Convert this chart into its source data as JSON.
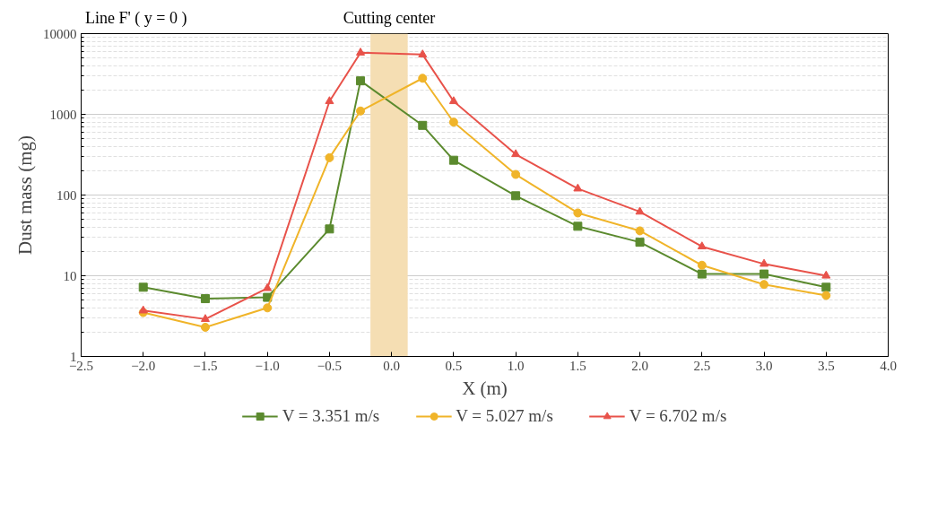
{
  "chart_data": {
    "type": "line",
    "xlabel": "X (m)",
    "ylabel": "Dust mass (mg)",
    "log": "y",
    "annotations": [
      "Line F' ( y = 0 )"
    ],
    "xlim": [
      -2.5,
      4.0
    ],
    "xticks": [
      {
        "value": -2.5,
        "label": "−2.5"
      },
      {
        "value": -2.0,
        "label": "−2.0"
      },
      {
        "value": -1.5,
        "label": "−1.5"
      },
      {
        "value": -1.0,
        "label": "−1.0"
      },
      {
        "value": -0.5,
        "label": "−0.5"
      },
      {
        "value": 0.0,
        "label": "0.0"
      },
      {
        "value": 0.5,
        "label": "0.5"
      },
      {
        "value": 1.0,
        "label": "1.0"
      },
      {
        "value": 1.5,
        "label": "1.5"
      },
      {
        "value": 2.0,
        "label": "2.0"
      },
      {
        "value": 2.5,
        "label": "2.5"
      },
      {
        "value": 3.0,
        "label": "3.0"
      },
      {
        "value": 3.5,
        "label": "3.5"
      },
      {
        "value": 4.0,
        "label": "4.0"
      }
    ],
    "ylim": [
      1,
      10000
    ],
    "yticks": [
      1,
      10,
      100,
      1000,
      10000
    ],
    "grid": "y",
    "legend": "bottom",
    "line_style": "solid",
    "bands": [
      {
        "axis": "x",
        "from": -0.17,
        "to": 0.13,
        "label": "Cutting center",
        "color": "#f5deb3"
      }
    ],
    "x": [
      -2.0,
      -1.5,
      -1.0,
      -0.5,
      -0.25,
      0.25,
      0.5,
      1.0,
      1.5,
      2.0,
      2.5,
      3.0,
      3.5
    ],
    "series": [
      {
        "name": "V = 3.351 m/s",
        "color": "#5b8a2e",
        "marker": "square",
        "values": [
          7.2,
          5.2,
          5.4,
          38,
          2600,
          730,
          270,
          98,
          41,
          26,
          10.5,
          10.5,
          7.2
        ]
      },
      {
        "name": "V = 5.027 m/s",
        "color": "#f0b429",
        "marker": "circle",
        "values": [
          3.5,
          2.3,
          4.0,
          290,
          1100,
          2800,
          800,
          180,
          60,
          36,
          13.5,
          7.8,
          5.7
        ]
      },
      {
        "name": "V = 6.702 m/s",
        "color": "#e8524a",
        "marker": "triangle",
        "values": [
          3.7,
          2.9,
          7.0,
          1450,
          5800,
          5500,
          1450,
          320,
          120,
          62,
          23,
          14,
          10
        ]
      }
    ]
  }
}
